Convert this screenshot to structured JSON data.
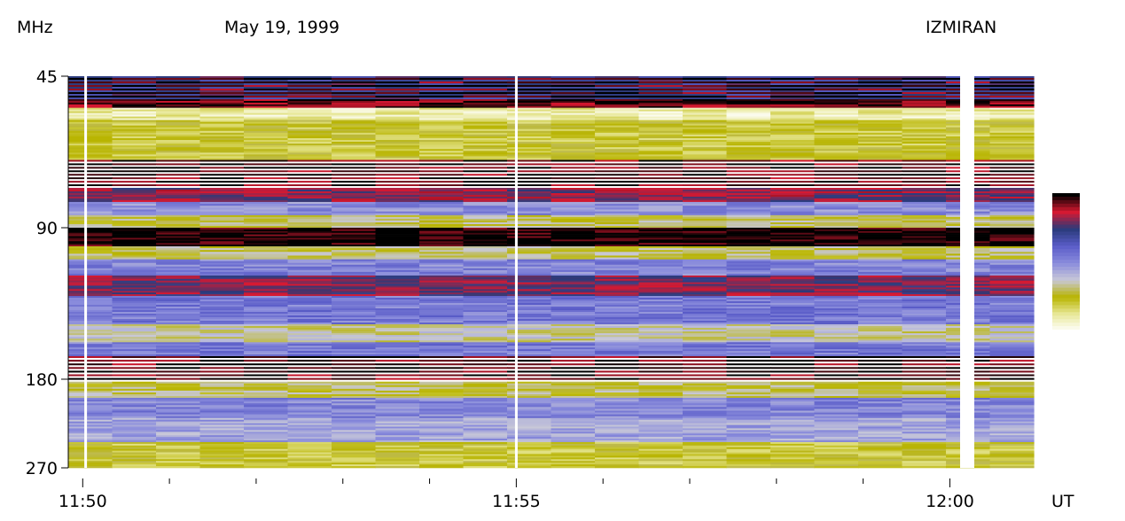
{
  "header": {
    "units": "MHz",
    "date": "May 19, 1999",
    "observatory": "IZMIRAN"
  },
  "colors": {
    "scale_stops": [
      "#ffffff",
      "#e8e89a",
      "#b8b400",
      "#c8c8d8",
      "#8a8cdc",
      "#5a5cc8",
      "#2a3a7a",
      "#d81830",
      "#000000"
    ]
  },
  "chart_data": {
    "type": "heatmap",
    "title": "",
    "xlabel": "UT",
    "ylabel": "MHz",
    "x_range": [
      "11:49:50",
      "12:00:58"
    ],
    "y_range_mhz": [
      45,
      270
    ],
    "y_scale": "log",
    "x_ticks": {
      "labeled": [
        "11:50",
        "11:55",
        "12:00"
      ],
      "minor_interval_minutes": 1
    },
    "y_ticks": [
      45,
      90,
      180,
      270
    ],
    "frequency_bands": [
      {
        "from_mhz": 45,
        "to_mhz": 50,
        "level": 0.72,
        "note": "striped blue/red"
      },
      {
        "from_mhz": 50,
        "to_mhz": 52,
        "level": 0.95
      },
      {
        "from_mhz": 52,
        "to_mhz": 55,
        "level": 0.1
      },
      {
        "from_mhz": 55,
        "to_mhz": 66,
        "level": 0.22
      },
      {
        "from_mhz": 66,
        "to_mhz": 75,
        "level": 0.96,
        "note": "black/white lines"
      },
      {
        "from_mhz": 75,
        "to_mhz": 80,
        "level": 0.82
      },
      {
        "from_mhz": 80,
        "to_mhz": 85,
        "level": 0.5
      },
      {
        "from_mhz": 85,
        "to_mhz": 90,
        "level": 0.3
      },
      {
        "from_mhz": 90,
        "to_mhz": 98,
        "level": 1.0
      },
      {
        "from_mhz": 98,
        "to_mhz": 104,
        "level": 0.3
      },
      {
        "from_mhz": 104,
        "to_mhz": 112,
        "level": 0.52
      },
      {
        "from_mhz": 112,
        "to_mhz": 123,
        "level": 0.8
      },
      {
        "from_mhz": 123,
        "to_mhz": 140,
        "level": 0.55
      },
      {
        "from_mhz": 140,
        "to_mhz": 152,
        "level": 0.35
      },
      {
        "from_mhz": 152,
        "to_mhz": 162,
        "level": 0.55
      },
      {
        "from_mhz": 162,
        "to_mhz": 182,
        "level": 0.96,
        "note": "black/white lines"
      },
      {
        "from_mhz": 182,
        "to_mhz": 196,
        "level": 0.3
      },
      {
        "from_mhz": 196,
        "to_mhz": 215,
        "level": 0.52
      },
      {
        "from_mhz": 215,
        "to_mhz": 240,
        "level": 0.45
      },
      {
        "from_mhz": 240,
        "to_mhz": 270,
        "level": 0.22
      }
    ],
    "data_gaps_ut": [
      "11:50:02",
      "11:55:00",
      "12:00:12"
    ]
  }
}
